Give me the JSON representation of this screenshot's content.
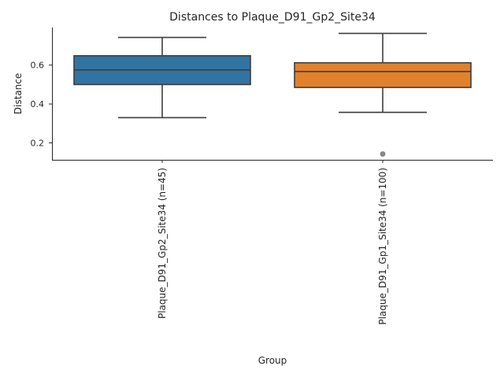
{
  "chart_data": {
    "type": "box",
    "title": "Distances to Plaque_D91_Gp2_Site34",
    "xlabel": "Group",
    "ylabel": "Distance",
    "categories": [
      "Plaque_D91_Gp2_Site34 (n=45)",
      "Plaque_D91_Gp1_Site34 (n=100)"
    ],
    "boxes": [
      {
        "category": "Plaque_D91_Gp2_Site34 (n=45)",
        "whisker_low": 0.33,
        "q1": 0.5,
        "median": 0.575,
        "q3": 0.648,
        "whisker_high": 0.742,
        "outliers": [],
        "color": "#3274a1"
      },
      {
        "category": "Plaque_D91_Gp1_Site34 (n=100)",
        "whisker_low": 0.357,
        "q1": 0.485,
        "median": 0.567,
        "q3": 0.612,
        "whisker_high": 0.763,
        "outliers": [
          0.143
        ],
        "color": "#e1812c"
      }
    ],
    "yticks": [
      0.2,
      0.4,
      0.6
    ],
    "ytick_labels": [
      "0.2",
      "0.4",
      "0.6"
    ],
    "ylim": [
      0.113,
      0.793
    ],
    "grid": false,
    "legend": "none",
    "colors": {
      "line": "#3d3d3d",
      "outlier": "#8a8a8a",
      "spine": "#262626"
    }
  }
}
